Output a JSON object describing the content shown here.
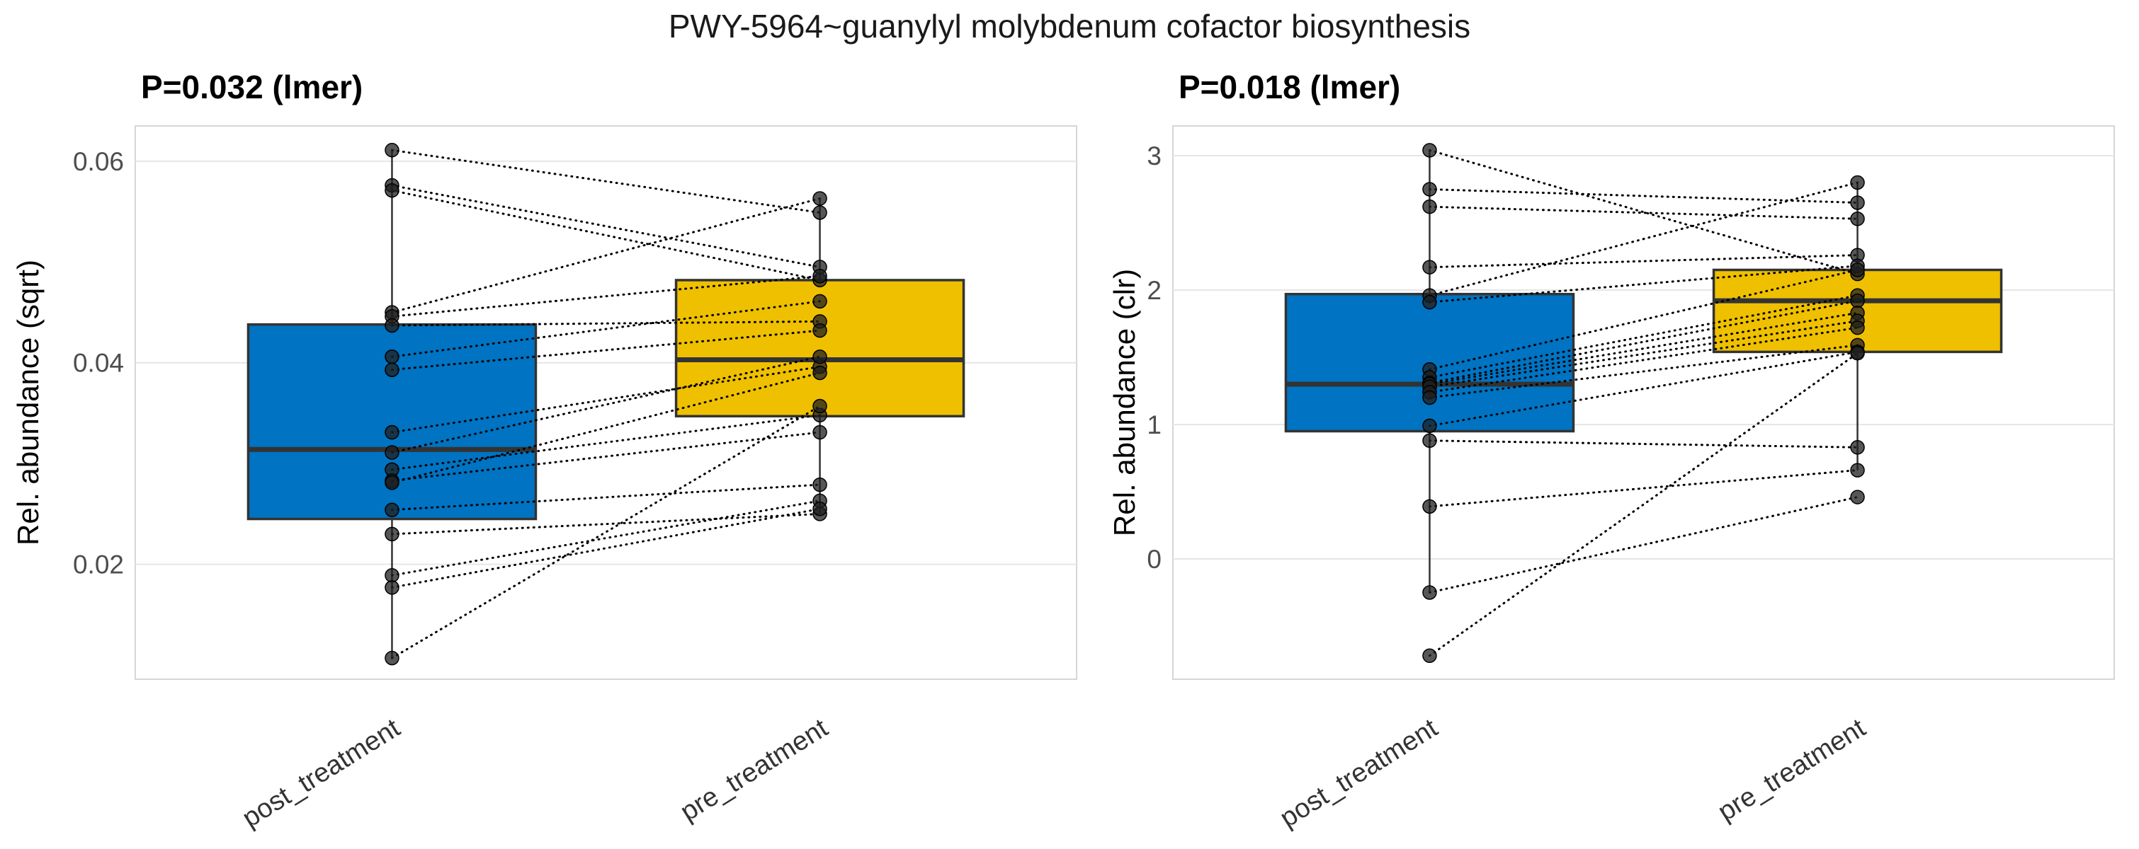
{
  "chart_data": {
    "type": "boxplot",
    "paired": true,
    "title": "PWY-5964~guanylyl molybdenum cofactor biosynthesis",
    "categories": [
      "post_treatment",
      "pre_treatment"
    ],
    "grid": "horizontal",
    "legend": null,
    "panels": [
      {
        "subtitle": "P=0.032 (lmer)",
        "ylabel": "Rel. abundance (sqrt)",
        "ylim": [
          0.0086,
          0.0635
        ],
        "yticks": [
          0.02,
          0.04,
          0.06
        ],
        "ytick_labels": [
          "0.02",
          "0.04",
          "0.06"
        ],
        "boxes": [
          {
            "category": "post_treatment",
            "color": "#0073C2",
            "whisker_low": 0.0107,
            "q1": 0.0245,
            "median": 0.0314,
            "q3": 0.0438,
            "whisker_high": 0.0611
          },
          {
            "category": "pre_treatment",
            "color": "#EFC000",
            "whisker_low": 0.025,
            "q1": 0.0347,
            "median": 0.0403,
            "q3": 0.0482,
            "whisker_high": 0.0563
          }
        ],
        "pairs": [
          [
            0.0611,
            0.0549
          ],
          [
            0.0576,
            0.0495
          ],
          [
            0.0571,
            0.0482
          ],
          [
            0.045,
            0.0563
          ],
          [
            0.0446,
            0.0486
          ],
          [
            0.0437,
            0.0441
          ],
          [
            0.0406,
            0.0461
          ],
          [
            0.0393,
            0.0432
          ],
          [
            0.0331,
            0.0396
          ],
          [
            0.0311,
            0.0406
          ],
          [
            0.0294,
            0.0348
          ],
          [
            0.0283,
            0.0331
          ],
          [
            0.0281,
            0.039
          ],
          [
            0.0254,
            0.0279
          ],
          [
            0.023,
            0.025
          ],
          [
            0.0189,
            0.0263
          ],
          [
            0.0177,
            0.0255
          ],
          [
            0.0107,
            0.0357
          ]
        ]
      },
      {
        "subtitle": "P=0.018 (lmer)",
        "ylabel": "Rel. abundance (clr)",
        "ylim": [
          -0.895,
          3.221
        ],
        "yticks": [
          0,
          1,
          2,
          3
        ],
        "ytick_labels": [
          "0",
          "1",
          "2",
          "3"
        ],
        "boxes": [
          {
            "category": "post_treatment",
            "color": "#0073C2",
            "whisker_low": -0.25,
            "q1": 0.95,
            "median": 1.3,
            "q3": 1.97,
            "whisker_high": 3.04
          },
          {
            "category": "pre_treatment",
            "color": "#EFC000",
            "whisker_low": 0.66,
            "q1": 1.54,
            "median": 1.92,
            "q3": 2.15,
            "whisker_high": 2.8
          }
        ],
        "pairs": [
          [
            3.04,
            2.12
          ],
          [
            2.75,
            2.65
          ],
          [
            2.62,
            2.53
          ],
          [
            2.17,
            2.26
          ],
          [
            1.96,
            2.8
          ],
          [
            1.91,
            2.18
          ],
          [
            1.41,
            2.15
          ],
          [
            1.35,
            1.96
          ],
          [
            1.31,
            1.92
          ],
          [
            1.3,
            1.83
          ],
          [
            1.28,
            1.77
          ],
          [
            1.24,
            1.72
          ],
          [
            1.2,
            1.59
          ],
          [
            0.99,
            1.54
          ],
          [
            0.88,
            0.83
          ],
          [
            0.39,
            0.66
          ],
          [
            -0.25,
            0.46
          ],
          [
            -0.72,
            1.53
          ]
        ]
      }
    ]
  },
  "style": {
    "post_color": "#0073C2",
    "pre_color": "#EFC000",
    "box_stroke": "#333333",
    "line_color": "#000000",
    "point_fill": "#1f1f1f",
    "gridline": "#E6E6E6",
    "panel_border": "#D6D6D6",
    "tick_label_color": "#4D4D4D",
    "x_label_color": "#333333"
  }
}
